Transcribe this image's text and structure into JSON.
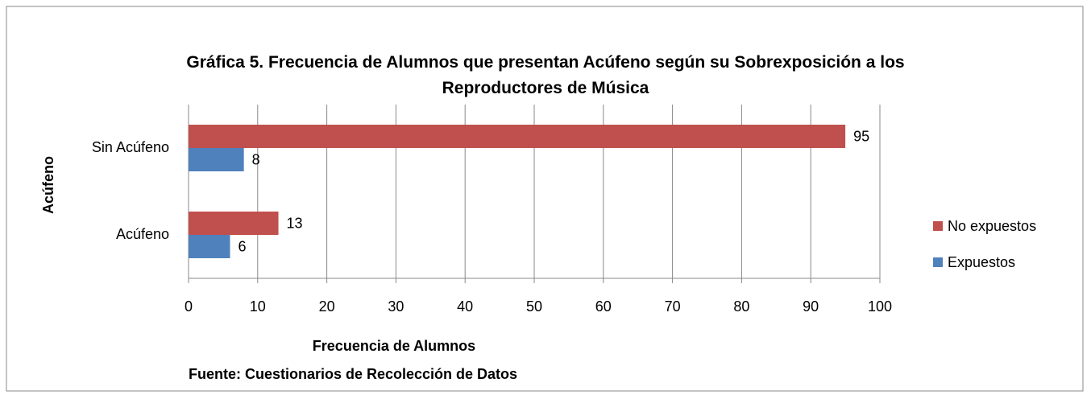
{
  "chart_data": {
    "type": "bar",
    "orientation": "horizontal",
    "title": "Gráfica  5. Frecuencia de Alumnos que presentan Acúfeno según su Sobrexposición a los Reproductores de Música",
    "x_label": "Frecuencia de Alumnos",
    "y_label": "Acúfeno",
    "source": "Fuente: Cuestionarios de Recolección de Datos",
    "categories": [
      "Sin Acúfeno",
      "Acúfeno"
    ],
    "series": [
      {
        "name": "No expuestos",
        "color": "#c0504d",
        "values": [
          95,
          13
        ]
      },
      {
        "name": "Expuestos",
        "color": "#4f81bd",
        "values": [
          8,
          6
        ]
      }
    ],
    "xlim": [
      0,
      100
    ],
    "xticks": [
      0,
      10,
      20,
      30,
      40,
      50,
      60,
      70,
      80,
      90,
      100
    ],
    "grid": true,
    "legend": "right"
  }
}
